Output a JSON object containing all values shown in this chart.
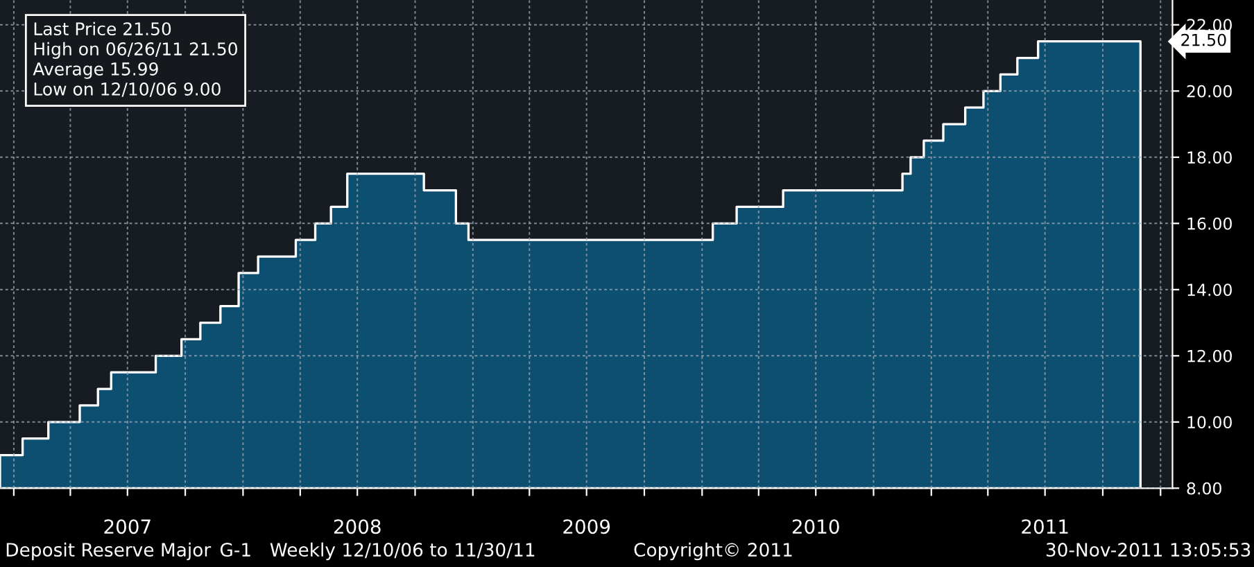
{
  "chart_data": {
    "type": "area",
    "x": [
      "2006-12-10",
      "2007-01-15",
      "2007-02-25",
      "2007-04-16",
      "2007-05-15",
      "2007-06-05",
      "2007-08-15",
      "2007-09-25",
      "2007-10-25",
      "2007-11-26",
      "2007-12-25",
      "2008-01-25",
      "2008-03-25",
      "2008-04-25",
      "2008-05-20",
      "2008-06-15",
      "2008-10-15",
      "2008-12-05",
      "2008-12-25",
      "2010-01-18",
      "2010-02-25",
      "2010-05-10",
      "2010-11-16",
      "2010-11-29",
      "2010-12-20",
      "2011-01-20",
      "2011-02-24",
      "2011-03-25",
      "2011-04-21",
      "2011-05-18",
      "2011-06-20",
      "2011-11-30"
    ],
    "series": [
      {
        "color": "#0c4f70",
        "values": [
          9.0,
          9.5,
          10.0,
          10.5,
          11.0,
          11.5,
          12.0,
          12.5,
          13.0,
          13.5,
          14.5,
          15.0,
          15.5,
          16.0,
          16.5,
          17.5,
          17.0,
          16.0,
          15.5,
          16.0,
          16.5,
          17.0,
          17.5,
          18.0,
          18.5,
          19.0,
          19.5,
          20.0,
          20.5,
          21.0,
          21.5,
          21.5
        ]
      }
    ],
    "xlim": [
      "2006-12-10",
      "2012-01-20"
    ],
    "xticks": [
      {
        "value": "2007-01-01",
        "label": null
      },
      {
        "value": "2007-04-01",
        "label": null
      },
      {
        "value": "2007-07-01",
        "label": "2007"
      },
      {
        "value": "2007-10-01",
        "label": null
      },
      {
        "value": "2008-01-01",
        "label": null
      },
      {
        "value": "2008-04-01",
        "label": null
      },
      {
        "value": "2008-07-01",
        "label": "2008"
      },
      {
        "value": "2008-10-01",
        "label": null
      },
      {
        "value": "2009-01-01",
        "label": null
      },
      {
        "value": "2009-04-01",
        "label": null
      },
      {
        "value": "2009-07-01",
        "label": "2009"
      },
      {
        "value": "2009-10-01",
        "label": null
      },
      {
        "value": "2010-01-01",
        "label": null
      },
      {
        "value": "2010-04-01",
        "label": null
      },
      {
        "value": "2010-07-01",
        "label": "2010"
      },
      {
        "value": "2010-10-01",
        "label": null
      },
      {
        "value": "2011-01-01",
        "label": null
      },
      {
        "value": "2011-04-01",
        "label": null
      },
      {
        "value": "2011-07-01",
        "label": "2011"
      },
      {
        "value": "2011-10-01",
        "label": null
      },
      {
        "value": "2012-01-01",
        "label": null
      }
    ],
    "ylim": [
      8,
      22.75
    ],
    "yticks": [
      {
        "value": 8,
        "label": "8.00"
      },
      {
        "value": 10,
        "label": "10.00"
      },
      {
        "value": 12,
        "label": "12.00"
      },
      {
        "value": 14,
        "label": "14.00"
      },
      {
        "value": 16,
        "label": "16.00"
      },
      {
        "value": 18,
        "label": "18.00"
      },
      {
        "value": 20,
        "label": "20.00"
      },
      {
        "value": 22,
        "label": "22.00"
      }
    ],
    "grid": true,
    "annotations": [
      "Last Price 21.50",
      "High on 06/26/11 21.50",
      "Average 15.99",
      "Low on 12/10/06 9.00",
      "21.50",
      "Deposit Reserve Major",
      "G-1",
      "Weekly 12/10/06 to 11/30/11",
      "Copyright© 2011",
      "30-Nov-2011 13:05:53"
    ]
  }
}
